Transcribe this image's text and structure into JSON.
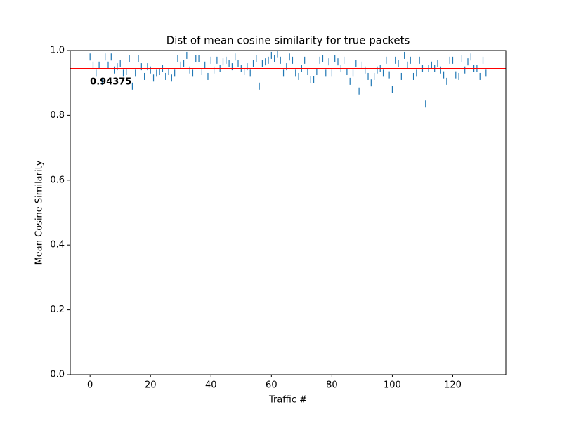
{
  "chart_data": {
    "type": "scatter",
    "marker": "|",
    "title": "Dist of mean cosine similarity for true packets",
    "xlabel": "Traffic #",
    "ylabel": "Mean Cosine Similarity",
    "x": [
      0,
      1,
      2,
      3,
      4,
      5,
      6,
      7,
      8,
      9,
      10,
      11,
      12,
      13,
      14,
      15,
      16,
      17,
      18,
      19,
      20,
      21,
      22,
      23,
      24,
      25,
      26,
      27,
      28,
      29,
      30,
      31,
      32,
      33,
      34,
      35,
      36,
      37,
      38,
      39,
      40,
      41,
      42,
      43,
      44,
      45,
      46,
      47,
      48,
      49,
      50,
      51,
      52,
      53,
      54,
      55,
      56,
      57,
      58,
      59,
      60,
      61,
      62,
      63,
      64,
      65,
      66,
      67,
      68,
      69,
      70,
      71,
      72,
      73,
      74,
      75,
      76,
      77,
      78,
      79,
      80,
      81,
      82,
      83,
      84,
      85,
      86,
      87,
      88,
      89,
      90,
      91,
      92,
      93,
      94,
      95,
      96,
      97,
      98,
      99,
      100,
      101,
      102,
      103,
      104,
      105,
      106,
      107,
      108,
      109,
      110,
      111,
      112,
      113,
      114,
      115,
      116,
      117,
      118,
      119,
      120,
      121,
      122,
      123,
      124,
      125,
      126,
      127,
      128,
      129,
      130,
      131
    ],
    "values": [
      0.98,
      0.955,
      0.93,
      0.955,
      0.905,
      0.98,
      0.955,
      0.98,
      0.94,
      0.95,
      0.96,
      0.93,
      0.935,
      0.975,
      0.89,
      0.93,
      0.975,
      0.95,
      0.92,
      0.95,
      0.94,
      0.915,
      0.93,
      0.935,
      0.945,
      0.92,
      0.935,
      0.915,
      0.93,
      0.975,
      0.955,
      0.96,
      0.985,
      0.94,
      0.93,
      0.975,
      0.975,
      0.935,
      0.955,
      0.92,
      0.97,
      0.94,
      0.97,
      0.945,
      0.965,
      0.97,
      0.96,
      0.95,
      0.98,
      0.96,
      0.945,
      0.935,
      0.95,
      0.93,
      0.96,
      0.975,
      0.89,
      0.96,
      0.965,
      0.97,
      0.985,
      0.975,
      0.99,
      0.97,
      0.93,
      0.95,
      0.98,
      0.97,
      0.93,
      0.92,
      0.945,
      0.97,
      0.935,
      0.91,
      0.91,
      0.935,
      0.97,
      0.975,
      0.93,
      0.965,
      0.93,
      0.975,
      0.965,
      0.945,
      0.97,
      0.935,
      0.905,
      0.93,
      0.96,
      0.875,
      0.955,
      0.94,
      0.92,
      0.9,
      0.92,
      0.94,
      0.945,
      0.93,
      0.97,
      0.925,
      0.88,
      0.97,
      0.96,
      0.92,
      0.985,
      0.955,
      0.97,
      0.92,
      0.93,
      0.97,
      0.945,
      0.835,
      0.945,
      0.955,
      0.945,
      0.96,
      0.94,
      0.925,
      0.905,
      0.97,
      0.97,
      0.925,
      0.92,
      0.975,
      0.94,
      0.965,
      0.98,
      0.945,
      0.945,
      0.92,
      0.97,
      0.93
    ],
    "color": "#1f77b4",
    "hline": {
      "value": 0.94375,
      "color": "#ff0000"
    },
    "xlim": [
      -6.55,
      137.55
    ],
    "xticks": [
      0,
      20,
      40,
      60,
      80,
      100,
      120
    ],
    "ylim": [
      0,
      1
    ],
    "yticks": [
      {
        "value": 0,
        "label": "0.0"
      },
      {
        "value": 0.2,
        "label": "0.2"
      },
      {
        "value": 0.4,
        "label": "0.4"
      },
      {
        "value": 0.6,
        "label": "0.6"
      },
      {
        "value": 0.8,
        "label": "0.8"
      },
      {
        "value": 1,
        "label": "1.0"
      }
    ]
  }
}
